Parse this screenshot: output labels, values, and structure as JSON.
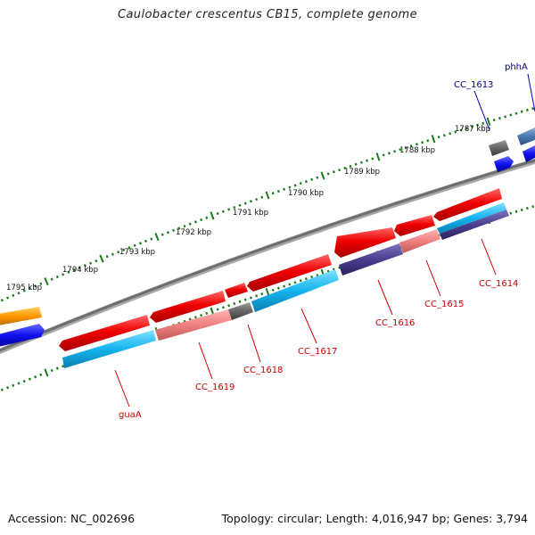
{
  "title": "Caulobacter crescentus CB15, complete genome",
  "footer": {
    "accession": "Accession: NC_002696",
    "summary": "Topology: circular; Length: 4,016,947 bp; Genes: 3,794"
  },
  "scale_labels": [
    "1787 kbp",
    "1788 kbp",
    "1789 kbp",
    "1790 kbp",
    "1791 kbp",
    "1792 kbp",
    "1793 kbp",
    "1794 kbp",
    "1795 kbp"
  ],
  "genes": {
    "phhA": {
      "label": "phhA",
      "color": "#00008b"
    },
    "CC_1613": {
      "label": "CC_1613",
      "color": "#00008b"
    },
    "CC_1614": {
      "label": "CC_1614",
      "color": "#cc0000"
    },
    "CC_1615": {
      "label": "CC_1615",
      "color": "#cc0000"
    },
    "CC_1616": {
      "label": "CC_1616",
      "color": "#cc0000"
    },
    "CC_1617": {
      "label": "CC_1617",
      "color": "#cc0000"
    },
    "CC_1618": {
      "label": "CC_1618",
      "color": "#cc0000"
    },
    "CC_1619": {
      "label": "CC_1619",
      "color": "#cc0000"
    },
    "guaA": {
      "label": "guaA",
      "color": "#cc0000"
    }
  },
  "colors": {
    "backbone": "#7a7a7a",
    "scale_ticks": "#1a7a1a",
    "gene_red": "#ee0000",
    "gene_cyan": "#14b4ee",
    "gene_pink": "#ee8080",
    "gene_gray": "#666666",
    "gene_navy": "#4a3f8f",
    "gene_orange": "#ff9900",
    "gene_blue": "#1010ee",
    "gene_steel": "#4a7ab0",
    "label_leader": "#cc0000",
    "label_leader_blue": "#0000aa"
  }
}
